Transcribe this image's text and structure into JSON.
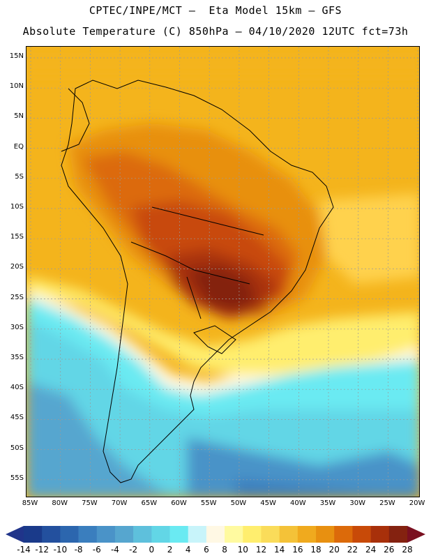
{
  "title_line1": "CPTEC/INPE/MCT –  Eta Model 15km – GFS",
  "title_line2": "Absolute Temperature (C) 850hPa – 04/10/2020 12UTC fct=73h",
  "lat_labels": [
    "15N",
    "10N",
    "5N",
    "EQ",
    "5S",
    "10S",
    "15S",
    "20S",
    "25S",
    "30S",
    "35S",
    "40S",
    "45S",
    "50S",
    "55S"
  ],
  "lon_labels": [
    "85W",
    "80W",
    "75W",
    "70W",
    "65W",
    "60W",
    "55W",
    "50W",
    "45W",
    "40W",
    "35W",
    "30W",
    "25W",
    "20W"
  ],
  "colorbar": {
    "labels": [
      "-14",
      "-12",
      "-10",
      "-8",
      "-6",
      "-4",
      "-2",
      "0",
      "2",
      "4",
      "6",
      "8",
      "10",
      "12",
      "14",
      "16",
      "18",
      "20",
      "22",
      "24",
      "26",
      "28"
    ],
    "colors": [
      "#1a3a8a",
      "#23509e",
      "#2c66ae",
      "#3a7ebe",
      "#4a93c8",
      "#56a6cf",
      "#5ec0dc",
      "#62d6e6",
      "#6aeaf2",
      "#c8f4fa",
      "#fff8e4",
      "#fffaa0",
      "#ffee6e",
      "#fadc5a",
      "#f4c238",
      "#f0aa1e",
      "#e89010",
      "#dc6a0a",
      "#c84a08",
      "#a8300a",
      "#842210"
    ],
    "low_arrow_color": "#20348a",
    "high_arrow_color": "#7a1020"
  }
}
